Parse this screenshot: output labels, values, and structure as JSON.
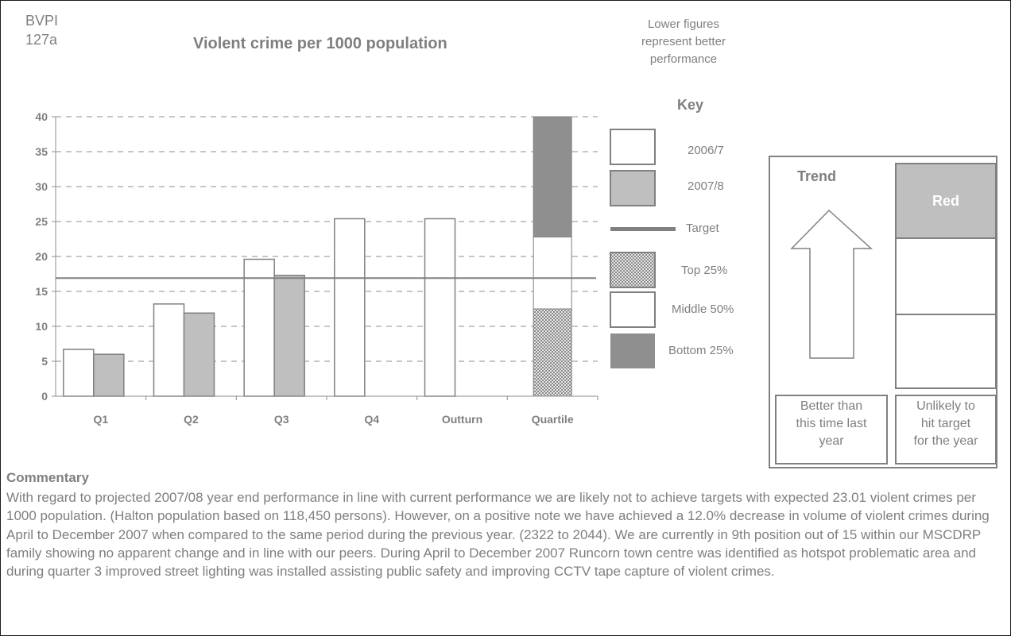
{
  "header": {
    "code_line1": "BVPI",
    "code_line2": "127a",
    "title": "Violent crime per 1000 population",
    "note_lines": [
      "Lower figures",
      "represent better",
      "performance"
    ]
  },
  "key": {
    "title": "Key",
    "items": [
      {
        "label": "2006/7",
        "style": "box",
        "color": "#ffffff"
      },
      {
        "label": "2007/8",
        "style": "box",
        "color": "#bfbfbf"
      },
      {
        "label": "Target",
        "style": "line",
        "color": "#808080"
      },
      {
        "label": "Top 25%",
        "style": "hatch",
        "color": "#bfbfbf"
      },
      {
        "label": "Middle 50%",
        "style": "box",
        "color": "#ffffff"
      },
      {
        "label": "Bottom 25%",
        "style": "fill",
        "color": "#8f8f8f"
      }
    ]
  },
  "chart_data": {
    "type": "bar",
    "categories": [
      "Q1",
      "Q2",
      "Q3",
      "Q4",
      "Outturn",
      "Quartile"
    ],
    "ylim": [
      0,
      40
    ],
    "yticks": [
      0,
      5,
      10,
      15,
      20,
      25,
      30,
      35,
      40
    ],
    "grid": true,
    "series": [
      {
        "name": "2006/7",
        "color": "#ffffff",
        "values": [
          6.7,
          13.2,
          19.6,
          25.4,
          25.4,
          null
        ]
      },
      {
        "name": "2007/8",
        "color": "#bfbfbf",
        "values": [
          6.0,
          11.9,
          17.3,
          null,
          null,
          null
        ]
      }
    ],
    "target": 16.9,
    "quartiles": {
      "top_25": 12.5,
      "middle_50": 22.8,
      "bottom_25": 40
    }
  },
  "status": {
    "trend_title": "Trend",
    "trend_direction": "up",
    "trend_caption": [
      "Better than",
      "this time last",
      "year"
    ],
    "traffic_light": "Red",
    "traffic_caption": [
      "Unlikely to",
      "hit target",
      "for the year"
    ]
  },
  "commentary": {
    "title": "Commentary",
    "body": "With regard to projected 2007/08 year end performance in line with current performance we are likely not to achieve targets with expected 23.01 violent crimes per 1000 population. (Halton population based on 118,450 persons). However, on a positive note we have achieved a 12.0% decrease in volume of violent crimes during April to December 2007 when compared to the same period during the previous year. (2322 to 2044). We are currently in 9th position out of 15 within our MSCDRP family showing no apparent change and in line with our peers. During April to December 2007 Runcorn town centre was identified as hotspot problematic area and during quarter 3 improved street lighting was installed assisting public safety and improving CCTV tape capture of violent crimes."
  }
}
